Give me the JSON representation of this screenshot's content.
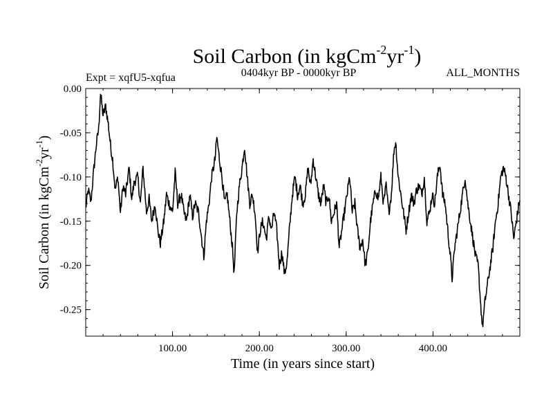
{
  "chart_data": {
    "type": "line",
    "title": "Soil Carbon (in kgCm",
    "title_sup1": "-2",
    "title_mid": "yr",
    "title_sup2": "-1",
    "title_end": ")",
    "subtitle_left": "Expt = xqfU5-xqfua",
    "subtitle_center": "0404kyr BP - 0000kyr BP",
    "subtitle_right": "ALL_MONTHS",
    "xlabel": "Time (in years since start)",
    "ylabel": "Soil Carbon (in kgCm",
    "ylabel_sup1": "-2",
    "ylabel_mid": "yr",
    "ylabel_sup2": "-1",
    "ylabel_end": ")",
    "xlim": [
      0,
      500
    ],
    "ylim": [
      -0.28,
      0.0
    ],
    "xticks": [
      100,
      200,
      300,
      400
    ],
    "xtick_labels": [
      "100.00",
      "200.00",
      "300.00",
      "400.00"
    ],
    "yticks": [
      0.0,
      -0.05,
      -0.1,
      -0.15,
      -0.2,
      -0.25
    ],
    "ytick_labels": [
      "0.00",
      "-0.05",
      "-0.10",
      "-0.15",
      "-0.20",
      "-0.25"
    ],
    "series": [
      {
        "name": "Soil Carbon",
        "color": "#000000",
        "anchors": [
          [
            0,
            -0.135
          ],
          [
            3,
            -0.115
          ],
          [
            6,
            -0.128
          ],
          [
            9,
            -0.095
          ],
          [
            12,
            -0.065
          ],
          [
            15,
            -0.045
          ],
          [
            17,
            -0.005
          ],
          [
            20,
            -0.03
          ],
          [
            23,
            -0.02
          ],
          [
            26,
            -0.04
          ],
          [
            29,
            -0.068
          ],
          [
            31,
            -0.08
          ],
          [
            34,
            -0.115
          ],
          [
            37,
            -0.1
          ],
          [
            40,
            -0.14
          ],
          [
            43,
            -0.11
          ],
          [
            46,
            -0.12
          ],
          [
            50,
            -0.09
          ],
          [
            53,
            -0.125
          ],
          [
            56,
            -0.105
          ],
          [
            60,
            -0.1
          ],
          [
            63,
            -0.13
          ],
          [
            66,
            -0.09
          ],
          [
            70,
            -0.14
          ],
          [
            73,
            -0.125
          ],
          [
            76,
            -0.15
          ],
          [
            80,
            -0.13
          ],
          [
            83,
            -0.16
          ],
          [
            86,
            -0.175
          ],
          [
            90,
            -0.15
          ],
          [
            93,
            -0.12
          ],
          [
            96,
            -0.13
          ],
          [
            100,
            -0.14
          ],
          [
            103,
            -0.095
          ],
          [
            106,
            -0.13
          ],
          [
            110,
            -0.12
          ],
          [
            113,
            -0.14
          ],
          [
            116,
            -0.15
          ],
          [
            120,
            -0.12
          ],
          [
            123,
            -0.145
          ],
          [
            126,
            -0.13
          ],
          [
            130,
            -0.14
          ],
          [
            133,
            -0.165
          ],
          [
            136,
            -0.19
          ],
          [
            139,
            -0.15
          ],
          [
            142,
            -0.13
          ],
          [
            145,
            -0.1
          ],
          [
            149,
            -0.08
          ],
          [
            151,
            -0.055
          ],
          [
            154,
            -0.08
          ],
          [
            157,
            -0.1
          ],
          [
            160,
            -0.13
          ],
          [
            163,
            -0.12
          ],
          [
            166,
            -0.15
          ],
          [
            169,
            -0.18
          ],
          [
            171,
            -0.21
          ],
          [
            174,
            -0.14
          ],
          [
            177,
            -0.11
          ],
          [
            180,
            -0.09
          ],
          [
            183,
            -0.065
          ],
          [
            186,
            -0.1
          ],
          [
            189,
            -0.13
          ],
          [
            192,
            -0.12
          ],
          [
            195,
            -0.14
          ],
          [
            198,
            -0.185
          ],
          [
            201,
            -0.16
          ],
          [
            204,
            -0.15
          ],
          [
            208,
            -0.17
          ],
          [
            211,
            -0.145
          ],
          [
            214,
            -0.16
          ],
          [
            217,
            -0.14
          ],
          [
            220,
            -0.16
          ],
          [
            223,
            -0.2
          ],
          [
            226,
            -0.185
          ],
          [
            229,
            -0.21
          ],
          [
            232,
            -0.195
          ],
          [
            235,
            -0.155
          ],
          [
            238,
            -0.12
          ],
          [
            241,
            -0.1
          ],
          [
            244,
            -0.12
          ],
          [
            247,
            -0.11
          ],
          [
            250,
            -0.13
          ],
          [
            253,
            -0.12
          ],
          [
            256,
            -0.09
          ],
          [
            259,
            -0.11
          ],
          [
            262,
            -0.08
          ],
          [
            265,
            -0.1
          ],
          [
            268,
            -0.12
          ],
          [
            271,
            -0.13
          ],
          [
            274,
            -0.11
          ],
          [
            277,
            -0.13
          ],
          [
            280,
            -0.12
          ],
          [
            283,
            -0.15
          ],
          [
            286,
            -0.14
          ],
          [
            289,
            -0.13
          ],
          [
            292,
            -0.18
          ],
          [
            295,
            -0.16
          ],
          [
            298,
            -0.14
          ],
          [
            301,
            -0.12
          ],
          [
            304,
            -0.1
          ],
          [
            307,
            -0.14
          ],
          [
            310,
            -0.13
          ],
          [
            313,
            -0.16
          ],
          [
            316,
            -0.18
          ],
          [
            319,
            -0.17
          ],
          [
            322,
            -0.2
          ],
          [
            325,
            -0.185
          ],
          [
            328,
            -0.15
          ],
          [
            331,
            -0.13
          ],
          [
            334,
            -0.115
          ],
          [
            337,
            -0.125
          ],
          [
            340,
            -0.1
          ],
          [
            343,
            -0.13
          ],
          [
            346,
            -0.11
          ],
          [
            349,
            -0.14
          ],
          [
            352,
            -0.12
          ],
          [
            355,
            -0.07
          ],
          [
            357,
            -0.06
          ],
          [
            360,
            -0.1
          ],
          [
            363,
            -0.12
          ],
          [
            366,
            -0.14
          ],
          [
            369,
            -0.16
          ],
          [
            372,
            -0.14
          ],
          [
            375,
            -0.12
          ],
          [
            378,
            -0.13
          ],
          [
            381,
            -0.115
          ],
          [
            384,
            -0.11
          ],
          [
            387,
            -0.12
          ],
          [
            390,
            -0.1
          ],
          [
            393,
            -0.15
          ],
          [
            396,
            -0.14
          ],
          [
            399,
            -0.12
          ],
          [
            402,
            -0.13
          ],
          [
            405,
            -0.1
          ],
          [
            408,
            -0.085
          ],
          [
            411,
            -0.12
          ],
          [
            414,
            -0.13
          ],
          [
            417,
            -0.16
          ],
          [
            420,
            -0.19
          ],
          [
            422,
            -0.215
          ],
          [
            425,
            -0.18
          ],
          [
            428,
            -0.16
          ],
          [
            431,
            -0.14
          ],
          [
            434,
            -0.12
          ],
          [
            437,
            -0.1
          ],
          [
            440,
            -0.13
          ],
          [
            443,
            -0.15
          ],
          [
            446,
            -0.17
          ],
          [
            449,
            -0.19
          ],
          [
            452,
            -0.2
          ],
          [
            455,
            -0.245
          ],
          [
            457,
            -0.27
          ],
          [
            460,
            -0.24
          ],
          [
            463,
            -0.22
          ],
          [
            466,
            -0.2
          ],
          [
            469,
            -0.18
          ],
          [
            472,
            -0.15
          ],
          [
            475,
            -0.13
          ],
          [
            478,
            -0.1
          ],
          [
            481,
            -0.09
          ],
          [
            484,
            -0.1
          ],
          [
            487,
            -0.12
          ],
          [
            490,
            -0.14
          ],
          [
            493,
            -0.17
          ],
          [
            496,
            -0.15
          ],
          [
            500,
            -0.125
          ]
        ]
      }
    ]
  }
}
